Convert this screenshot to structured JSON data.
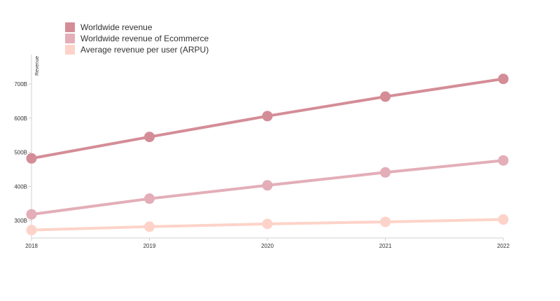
{
  "chart_data": {
    "type": "line",
    "title": "",
    "xlabel": "",
    "ylabel": "Revenue",
    "x": [
      "2018",
      "2019",
      "2020",
      "2021",
      "2022"
    ],
    "ylim": [
      250,
      770
    ],
    "y_ticks": [
      300,
      400,
      500,
      600,
      700
    ],
    "y_tick_labels": [
      "300B",
      "400B",
      "500B",
      "600B",
      "700B"
    ],
    "grid": false,
    "legend_position": "top-left",
    "series": [
      {
        "name": "Worldwide revenue",
        "color": "#d48d97",
        "values": [
          482,
          545,
          606,
          663,
          715
        ]
      },
      {
        "name": "Worldwide revenue of Ecommerce",
        "color": "#e3aeb8",
        "values": [
          318,
          364,
          403,
          441,
          476
        ]
      },
      {
        "name": "Average revenue per user (ARPU)",
        "color": "#fdd3c9",
        "values": [
          272,
          282,
          290,
          296,
          303
        ]
      }
    ]
  }
}
